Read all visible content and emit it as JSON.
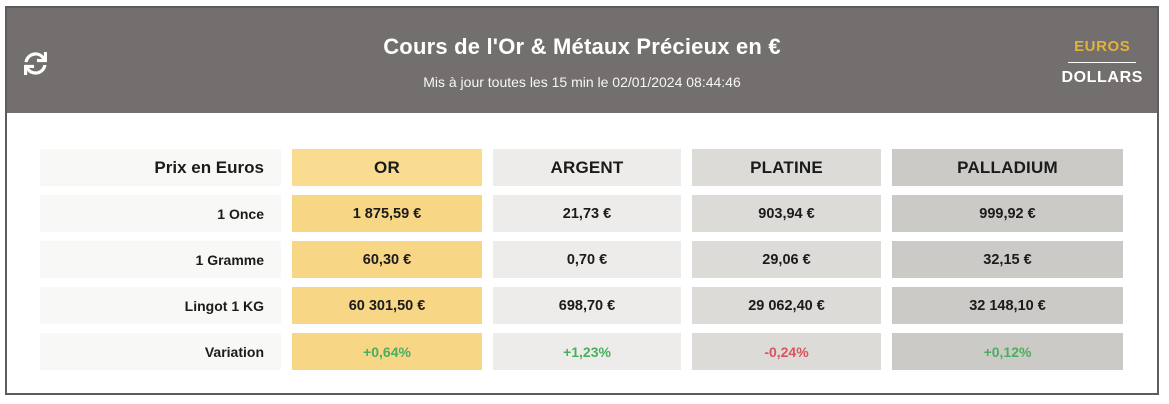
{
  "header": {
    "title": "Cours de l'Or & Métaux Précieux en €",
    "subtitle": "Mis à jour toutes les 15 min le 02/01/2024 08:44:46",
    "currency": {
      "active": "EUROS",
      "inactive": "DOLLARS"
    },
    "colors": {
      "band_background": "#736F6F",
      "active_currency": "#E2B23C",
      "inactive_currency": "#FFFFFF"
    }
  },
  "table": {
    "corner_label": "Prix en Euros",
    "label_column_bg": "#F8F8F6",
    "columns": [
      {
        "label": "OR",
        "header_bg": "#F9DC8F",
        "cell_bg": "#F7D685"
      },
      {
        "label": "ARGENT",
        "header_bg": "#EDECEA",
        "cell_bg": "#EDECEA"
      },
      {
        "label": "PLATINE",
        "header_bg": "#DCDBD8",
        "cell_bg": "#DCDBD8"
      },
      {
        "label": "PALLADIUM",
        "header_bg": "#CBCAC7",
        "cell_bg": "#CBCAC7"
      }
    ],
    "rows": [
      {
        "label": "1 Once",
        "values": [
          "1 875,59 €",
          "21,73 €",
          "903,94 €",
          "999,92 €"
        ]
      },
      {
        "label": "1 Gramme",
        "values": [
          "60,30 €",
          "0,70 €",
          "29,06 €",
          "32,15 €"
        ]
      },
      {
        "label": "Lingot 1 KG",
        "values": [
          "60 301,50 €",
          "698,70 €",
          "29 062,40 €",
          "32 148,10 €"
        ]
      },
      {
        "label": "Variation",
        "values": [
          "+0,64%",
          "+1,23%",
          "-0,24%",
          "+0,12%"
        ],
        "value_colors": [
          "#4BAE5F",
          "#4BAE5F",
          "#D9545E",
          "#4BAE5F"
        ]
      }
    ]
  }
}
